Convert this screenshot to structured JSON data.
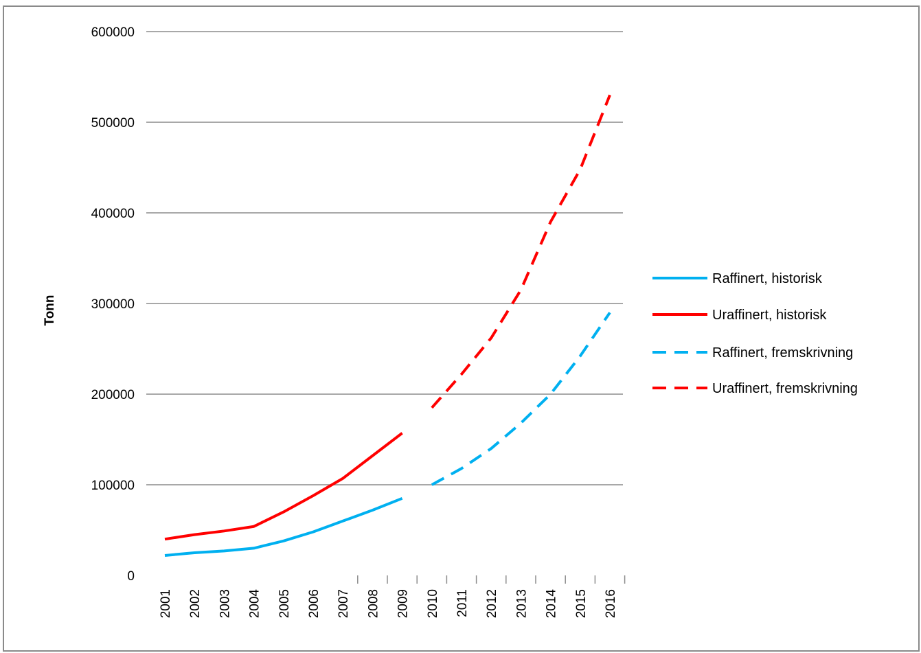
{
  "chart_data": {
    "type": "line",
    "title": "",
    "xlabel": "",
    "ylabel": "Tonn",
    "ylim": [
      0,
      600000
    ],
    "yticks": [
      0,
      100000,
      200000,
      300000,
      400000,
      500000,
      600000
    ],
    "ytick_labels": [
      "0",
      "100000",
      "200000",
      "300000",
      "400000",
      "500000",
      "600000"
    ],
    "categories": [
      "2001",
      "2002",
      "2003",
      "2004",
      "2005",
      "2006",
      "2007",
      "2008",
      "2009",
      "2010",
      "2011",
      "2012",
      "2013",
      "2014",
      "2015",
      "2016"
    ],
    "grid": true,
    "legend_position": "right",
    "series": [
      {
        "name": "Raffinert, historisk",
        "color": "#00b0f0",
        "style": "solid",
        "x": [
          "2001",
          "2002",
          "2003",
          "2004",
          "2005",
          "2006",
          "2007",
          "2008",
          "2009"
        ],
        "values": [
          22000,
          25000,
          27000,
          30000,
          38000,
          48000,
          60000,
          72000,
          85000
        ]
      },
      {
        "name": "Uraffinert, historisk",
        "color": "#ff0000",
        "style": "solid",
        "x": [
          "2001",
          "2002",
          "2003",
          "2004",
          "2005",
          "2006",
          "2007",
          "2008",
          "2009"
        ],
        "values": [
          40000,
          45000,
          49000,
          54000,
          70000,
          88000,
          107000,
          132000,
          157000
        ]
      },
      {
        "name": "Raffinert, fremskrivning",
        "color": "#00b0f0",
        "style": "dashed",
        "x": [
          "2010",
          "2011",
          "2012",
          "2013",
          "2014",
          "2015",
          "2016"
        ],
        "values": [
          100000,
          118000,
          140000,
          168000,
          200000,
          242000,
          290000
        ]
      },
      {
        "name": "Uraffinert, fremskrivning",
        "color": "#ff0000",
        "style": "dashed",
        "x": [
          "2010",
          "2011",
          "2012",
          "2013",
          "2014",
          "2015",
          "2016"
        ],
        "values": [
          185000,
          222000,
          262000,
          315000,
          390000,
          448000,
          530000
        ]
      }
    ]
  }
}
